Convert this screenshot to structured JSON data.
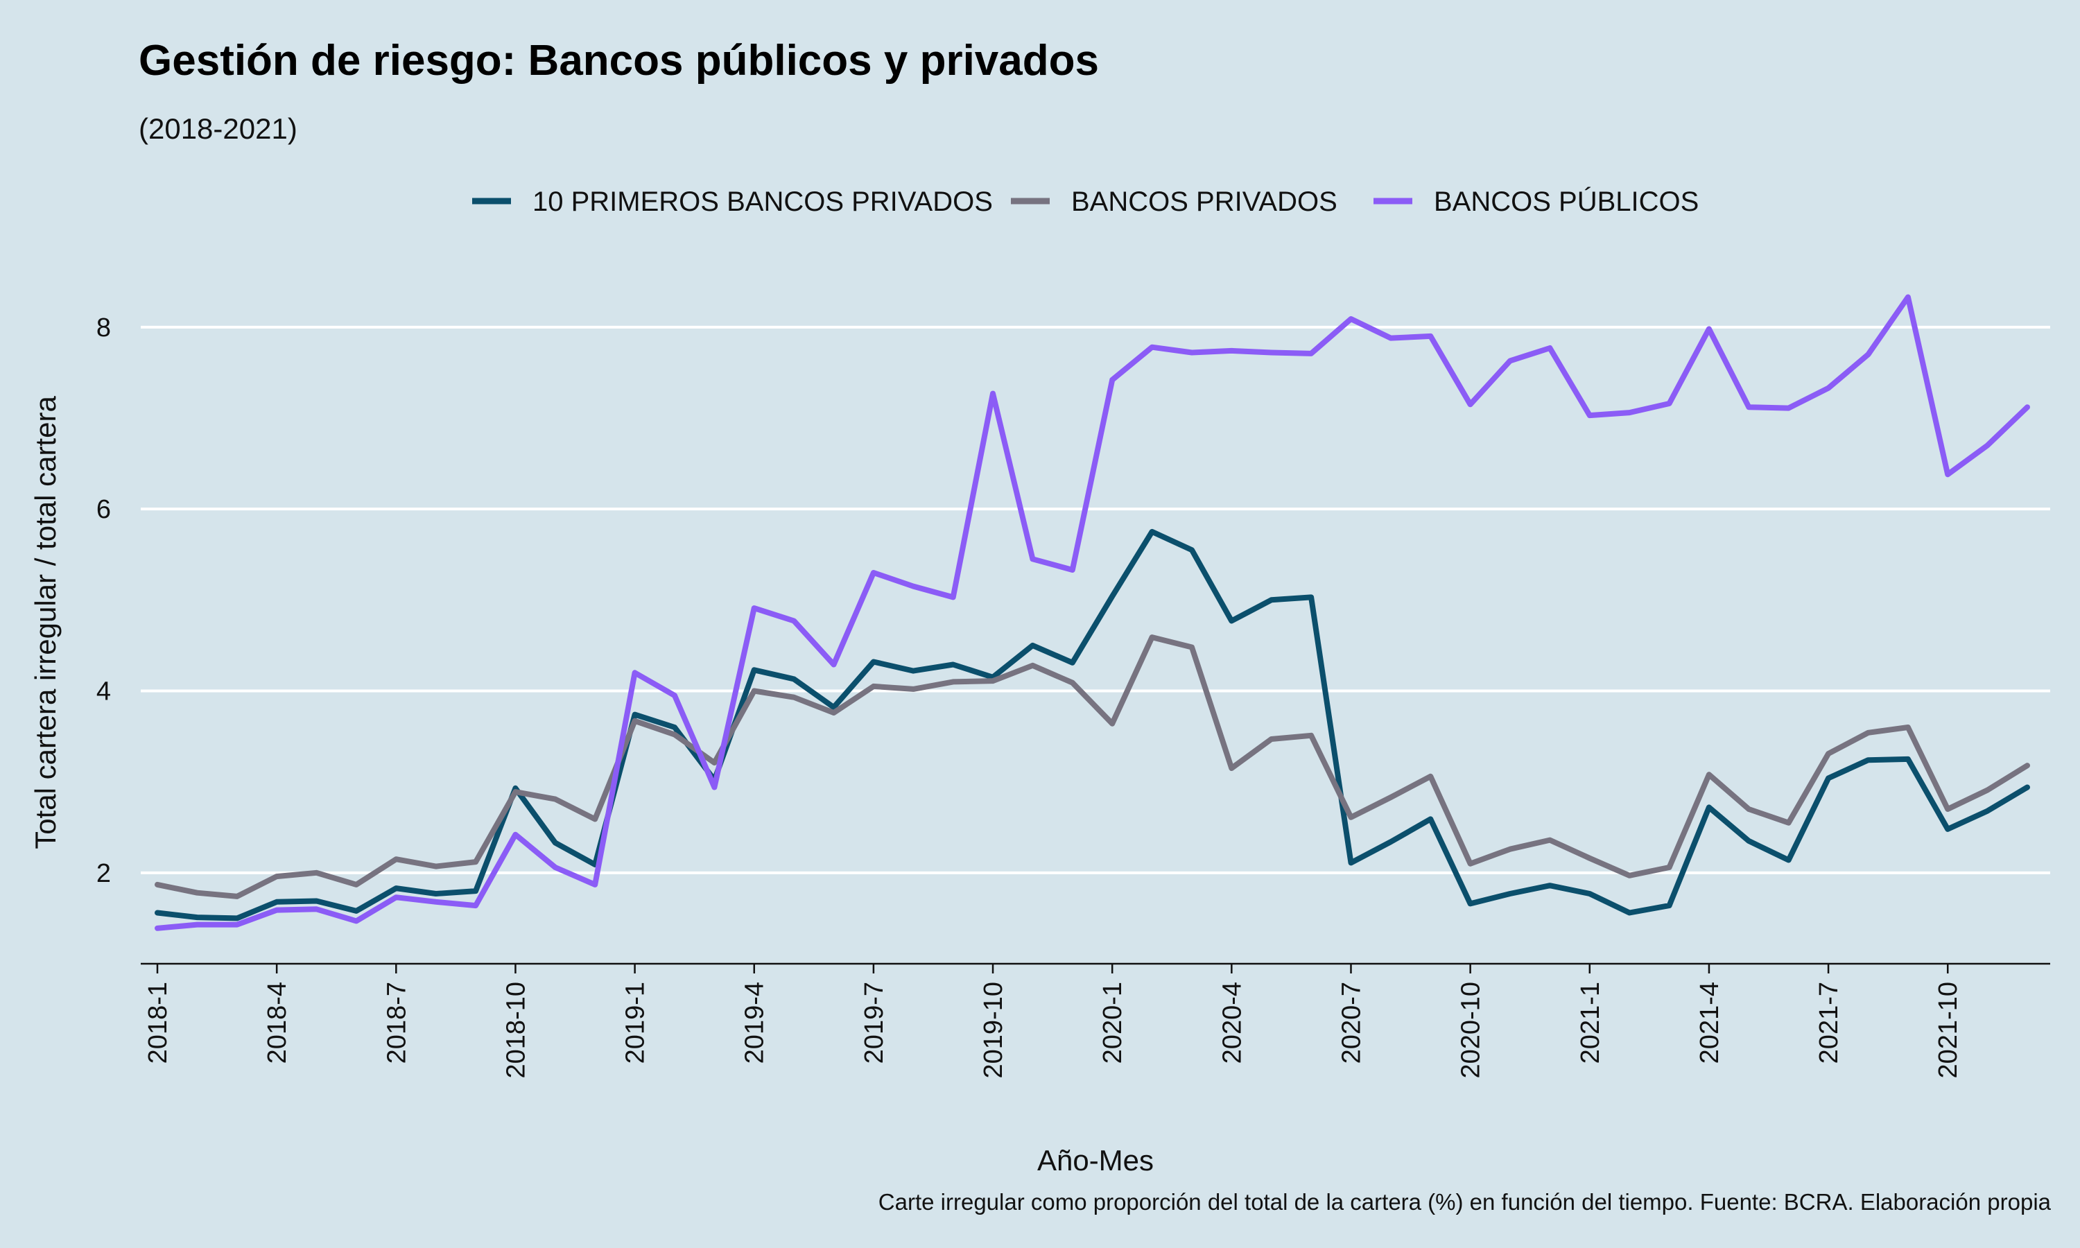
{
  "chart_data": {
    "type": "line",
    "title": "Gestión de riesgo: Bancos públicos y privados",
    "subtitle": "(2018-2021)",
    "xlabel": "Año-Mes",
    "ylabel": "Total cartera irregular / total cartera",
    "caption": "Carte irregular como proporción del total de la cartera (%) en función del tiempo. Fuente: BCRA. Elaboración propia",
    "legend_position": "top",
    "grid": true,
    "ylim": [
      1.0,
      8.7
    ],
    "y_ticks": [
      2,
      4,
      6,
      8
    ],
    "x": [
      "2018-1",
      "2018-2",
      "2018-3",
      "2018-4",
      "2018-5",
      "2018-6",
      "2018-7",
      "2018-8",
      "2018-9",
      "2018-10",
      "2018-11",
      "2018-12",
      "2019-1",
      "2019-2",
      "2019-3",
      "2019-4",
      "2019-5",
      "2019-6",
      "2019-7",
      "2019-8",
      "2019-9",
      "2019-10",
      "2019-11",
      "2019-12",
      "2020-1",
      "2020-2",
      "2020-3",
      "2020-4",
      "2020-5",
      "2020-6",
      "2020-7",
      "2020-8",
      "2020-9",
      "2020-10",
      "2020-11",
      "2020-12",
      "2021-1",
      "2021-2",
      "2021-3",
      "2021-4",
      "2021-5",
      "2021-6",
      "2021-7",
      "2021-8",
      "2021-9",
      "2021-10",
      "2021-11",
      "2021-12"
    ],
    "x_tick_labels": [
      "2018-1",
      "2018-4",
      "2018-7",
      "2018-10",
      "2019-1",
      "2019-4",
      "2019-7",
      "2019-10",
      "2020-1",
      "2020-4",
      "2020-7",
      "2020-10",
      "2021-1",
      "2021-4",
      "2021-7",
      "2021-10"
    ],
    "series": [
      {
        "name": "10 PRIMEROS BANCOS PRIVADOS",
        "color": "#0b4f6c",
        "values": [
          1.56,
          1.51,
          1.5,
          1.68,
          1.69,
          1.58,
          1.83,
          1.77,
          1.8,
          2.93,
          2.33,
          2.09,
          3.74,
          3.6,
          3.02,
          4.23,
          4.13,
          3.82,
          4.32,
          4.22,
          4.29,
          4.15,
          4.5,
          4.31,
          5.04,
          5.75,
          5.55,
          4.77,
          5.0,
          5.03,
          2.11,
          2.34,
          2.59,
          1.66,
          1.77,
          1.86,
          1.77,
          1.56,
          1.64,
          2.72,
          2.35,
          2.14,
          3.04,
          3.24,
          3.25,
          2.48,
          2.68,
          2.94
        ]
      },
      {
        "name": "BANCOS PRIVADOS",
        "color": "#777380",
        "values": [
          1.87,
          1.78,
          1.74,
          1.96,
          2.0,
          1.87,
          2.15,
          2.07,
          2.12,
          2.89,
          2.81,
          2.59,
          3.67,
          3.52,
          3.21,
          4.0,
          3.93,
          3.76,
          4.05,
          4.02,
          4.1,
          4.11,
          4.28,
          4.09,
          3.64,
          4.59,
          4.48,
          3.15,
          3.47,
          3.51,
          2.61,
          2.83,
          3.06,
          2.1,
          2.26,
          2.36,
          2.16,
          1.97,
          2.06,
          3.08,
          2.7,
          2.55,
          3.31,
          3.54,
          3.6,
          2.7,
          2.91,
          3.18
        ]
      },
      {
        "name": "BANCOS PÚBLICOS",
        "color": "#8b5cf6",
        "values": [
          1.39,
          1.43,
          1.43,
          1.59,
          1.6,
          1.47,
          1.73,
          1.68,
          1.64,
          2.42,
          2.06,
          1.87,
          4.2,
          3.95,
          2.94,
          4.91,
          4.77,
          4.29,
          5.3,
          5.15,
          5.03,
          7.27,
          5.45,
          5.33,
          7.42,
          7.78,
          7.72,
          7.74,
          7.72,
          7.71,
          8.09,
          7.88,
          7.9,
          7.15,
          7.63,
          7.77,
          7.03,
          7.06,
          7.16,
          7.98,
          7.12,
          7.11,
          7.33,
          7.7,
          8.33,
          6.38,
          6.7,
          7.12
        ]
      }
    ]
  }
}
